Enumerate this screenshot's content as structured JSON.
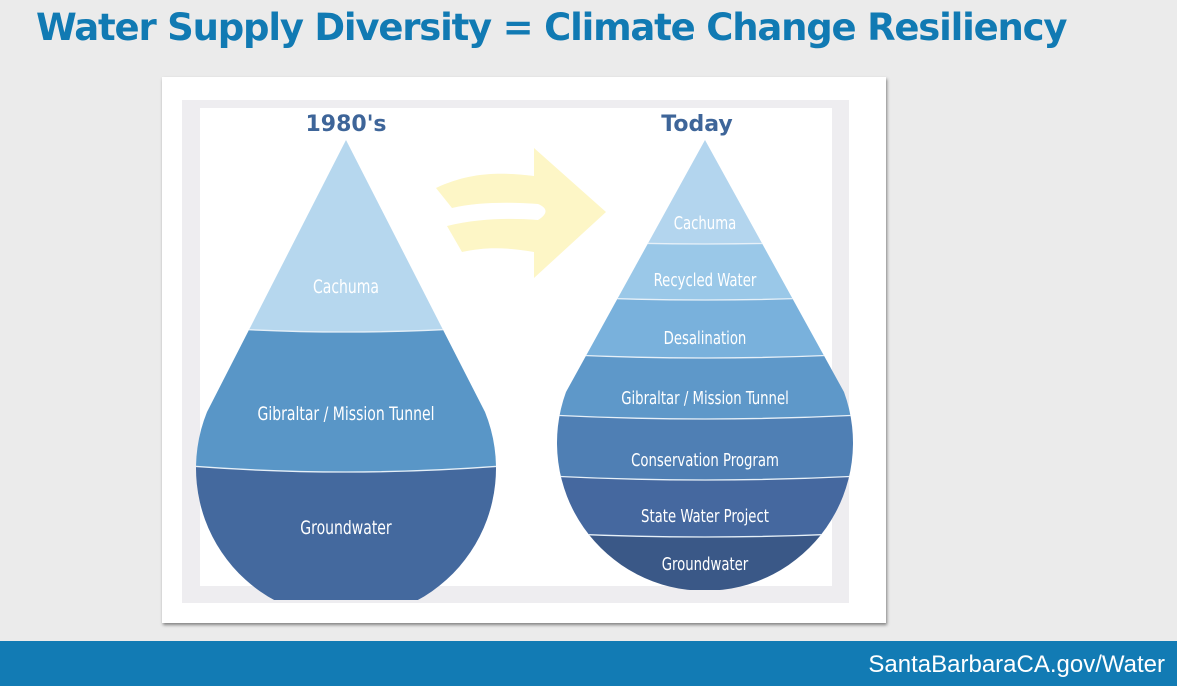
{
  "slide": {
    "title": "Water Supply Diversity = Climate Change Resiliency",
    "footer_url": "SantaBarbaraCA.gov/Water"
  },
  "diagram": {
    "arrow_color": "#fdf6c6",
    "drops": [
      {
        "heading": "1980's",
        "layers": [
          {
            "label": "Cachuma",
            "color": "#b6d7ee"
          },
          {
            "label": "Gibraltar / Mission Tunnel",
            "color": "#5996c7"
          },
          {
            "label": "Groundwater",
            "color": "#44699e"
          }
        ]
      },
      {
        "heading": "Today",
        "layers": [
          {
            "label": "Cachuma",
            "color": "#b3d5ee"
          },
          {
            "label": "Recycled Water",
            "color": "#9ac8e8"
          },
          {
            "label": "Desalination",
            "color": "#79b1dc"
          },
          {
            "label": "Gibraltar / Mission Tunnel",
            "color": "#5e98c9"
          },
          {
            "label": "Conservation Program",
            "color": "#4f7fb4"
          },
          {
            "label": "State Water Project",
            "color": "#45689f"
          },
          {
            "label": "Groundwater",
            "color": "#3a5887"
          }
        ]
      }
    ]
  }
}
